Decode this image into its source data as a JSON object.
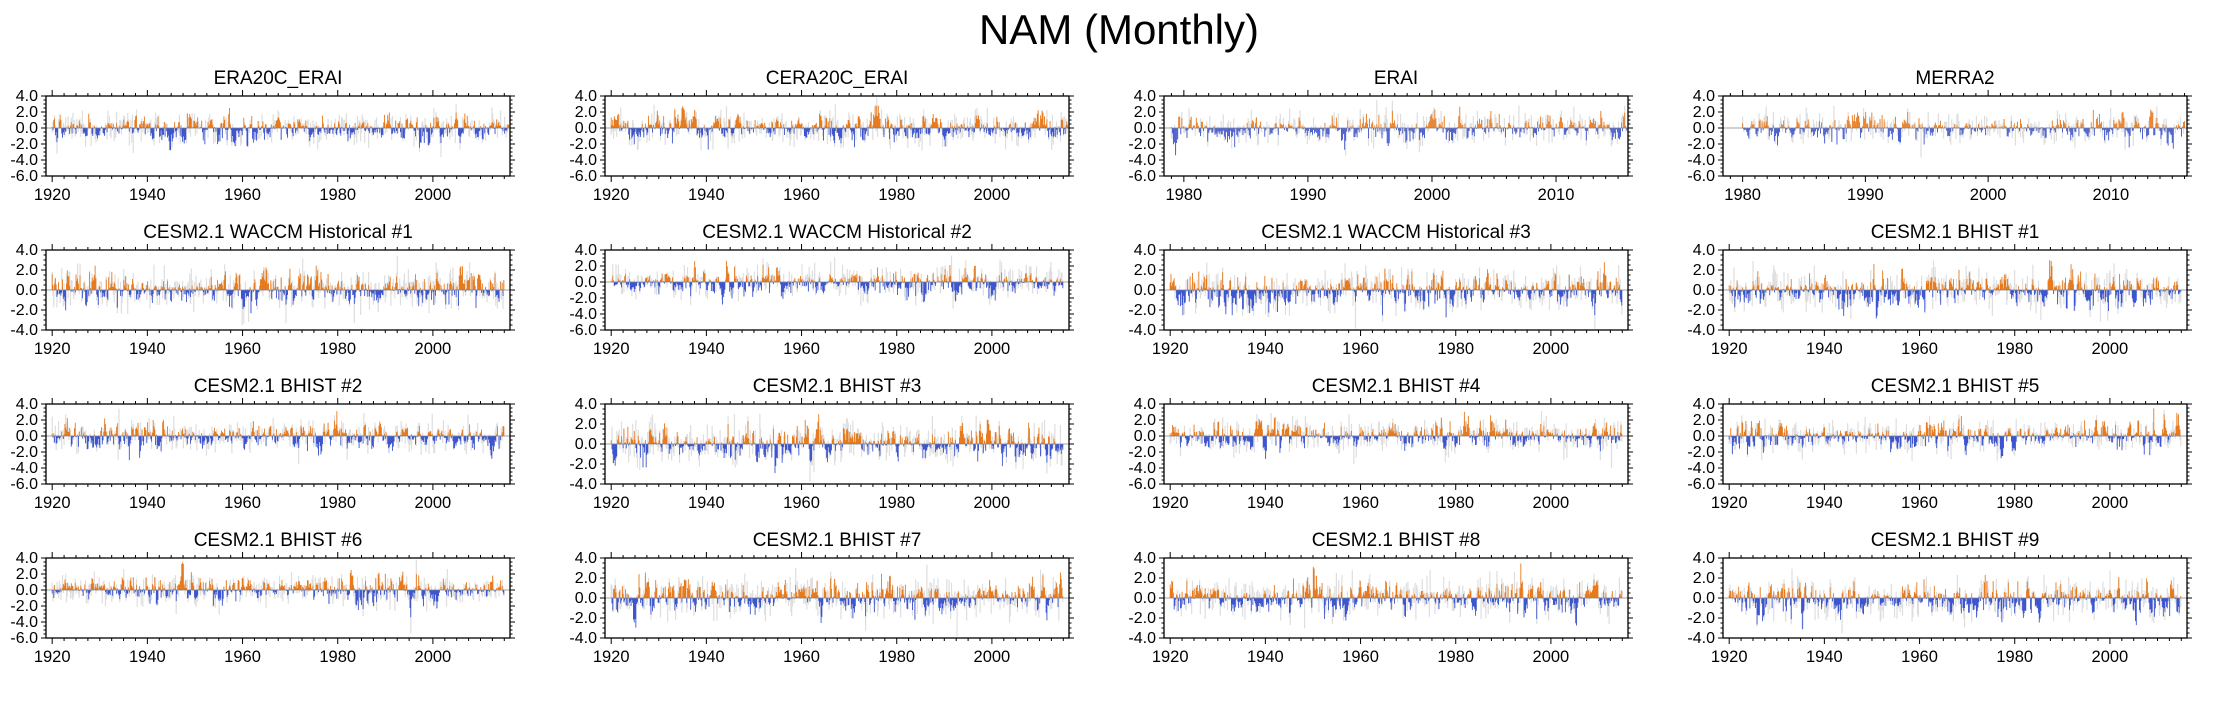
{
  "page_title": "NAM (Monthly)",
  "colors": {
    "positive_bar": "#E87A1E",
    "negative_bar": "#3D55CF",
    "background_bar": "#DEDEDE",
    "axis": "#000000",
    "zero_line": "#808080",
    "text": "#000000"
  },
  "chart_data": {
    "type": "bar",
    "title": "NAM (Monthly)",
    "description": "4x4 grid of monthly NAM (Northern Annular Mode) index anomaly time series. Each panel shows monthly bar anomalies: orange above zero, blue below zero, with a light-gray unfiltered monthly series drawn behind. Values are noise-like monthly anomalies mostly within +/-2, occasional peaks near +3.5 and dips near -5.",
    "legend_position": "none",
    "grid": false,
    "panels": [
      {
        "title": "ERA20C_ERAI",
        "seed": 101,
        "xlim": [
          1918.7,
          2016.2
        ],
        "xticks": [
          "1920",
          "1940",
          "1960",
          "1980",
          "2000"
        ],
        "x_minor_step": 2.5,
        "data_start": 1920,
        "data_end": 2015.9,
        "samples_per_year": 6,
        "ylim": [
          -6,
          4
        ],
        "yticks": [
          "4.0",
          "2.0",
          "0.0",
          "-2.0",
          "-4.0",
          "-6.0"
        ]
      },
      {
        "title": "CERA20C_ERAI",
        "seed": 202,
        "xlim": [
          1918.7,
          2016.2
        ],
        "xticks": [
          "1920",
          "1940",
          "1960",
          "1980",
          "2000"
        ],
        "x_minor_step": 2.5,
        "data_start": 1920,
        "data_end": 2015.9,
        "samples_per_year": 6,
        "ylim": [
          -6,
          4
        ],
        "yticks": [
          "4.0",
          "2.0",
          "0.0",
          "-2.0",
          "-4.0",
          "-6.0"
        ]
      },
      {
        "title": "ERAI",
        "seed": 303,
        "xlim": [
          1978.4,
          2015.8
        ],
        "xticks": [
          "1980",
          "1990",
          "2000",
          "2010"
        ],
        "x_minor_step": 1,
        "data_start": 1979,
        "data_end": 2015.7,
        "samples_per_year": 12,
        "ylim": [
          -6,
          4
        ],
        "yticks": [
          "4.0",
          "2.0",
          "0.0",
          "-2.0",
          "-4.0",
          "-6.0"
        ]
      },
      {
        "title": "MERRA2",
        "seed": 404,
        "xlim": [
          1978.4,
          2016.2
        ],
        "xticks": [
          "1980",
          "1990",
          "2000",
          "2010"
        ],
        "x_minor_step": 1,
        "data_start": 1980,
        "data_end": 2016,
        "samples_per_year": 12,
        "ylim": [
          -6,
          4
        ],
        "yticks": [
          "4.0",
          "2.0",
          "0.0",
          "-2.0",
          "-4.0",
          "-6.0"
        ]
      },
      {
        "title": "CESM2.1 WACCM Historical #1",
        "seed": 505,
        "xlim": [
          1918.7,
          2016.2
        ],
        "xticks": [
          "1920",
          "1940",
          "1960",
          "1980",
          "2000"
        ],
        "x_minor_step": 2.5,
        "data_start": 1920,
        "data_end": 2014.9,
        "samples_per_year": 6,
        "ylim": [
          -4,
          4
        ],
        "yticks": [
          "4.0",
          "2.0",
          "0.0",
          "-2.0",
          "-4.0"
        ]
      },
      {
        "title": "CESM2.1 WACCM Historical #2",
        "seed": 606,
        "xlim": [
          1918.7,
          2016.2
        ],
        "xticks": [
          "1920",
          "1940",
          "1960",
          "1980",
          "2000"
        ],
        "x_minor_step": 2.5,
        "data_start": 1920,
        "data_end": 2014.9,
        "samples_per_year": 6,
        "ylim": [
          -6,
          4
        ],
        "yticks": [
          "4.0",
          "2.0",
          "0.0",
          "-2.0",
          "-4.0",
          "-6.0"
        ]
      },
      {
        "title": "CESM2.1 WACCM Historical #3",
        "seed": 707,
        "xlim": [
          1918.7,
          2016.2
        ],
        "xticks": [
          "1920",
          "1940",
          "1960",
          "1980",
          "2000"
        ],
        "x_minor_step": 2.5,
        "data_start": 1920,
        "data_end": 2014.9,
        "samples_per_year": 6,
        "ylim": [
          -4,
          4
        ],
        "yticks": [
          "4.0",
          "2.0",
          "0.0",
          "-2.0",
          "-4.0"
        ]
      },
      {
        "title": "CESM2.1 BHIST #1",
        "seed": 808,
        "xlim": [
          1918.7,
          2016.2
        ],
        "xticks": [
          "1920",
          "1940",
          "1960",
          "1980",
          "2000"
        ],
        "x_minor_step": 2.5,
        "data_start": 1920,
        "data_end": 2014.9,
        "samples_per_year": 6,
        "ylim": [
          -4,
          4
        ],
        "yticks": [
          "4.0",
          "2.0",
          "0.0",
          "-2.0",
          "-4.0"
        ]
      },
      {
        "title": "CESM2.1 BHIST #2",
        "seed": 909,
        "xlim": [
          1918.7,
          2016.2
        ],
        "xticks": [
          "1920",
          "1940",
          "1960",
          "1980",
          "2000"
        ],
        "x_minor_step": 2.5,
        "data_start": 1920,
        "data_end": 2014.9,
        "samples_per_year": 6,
        "ylim": [
          -6,
          4
        ],
        "yticks": [
          "4.0",
          "2.0",
          "0.0",
          "-2.0",
          "-4.0",
          "-6.0"
        ]
      },
      {
        "title": "CESM2.1 BHIST #3",
        "seed": 1010,
        "xlim": [
          1918.7,
          2016.2
        ],
        "xticks": [
          "1920",
          "1940",
          "1960",
          "1980",
          "2000"
        ],
        "x_minor_step": 2.5,
        "data_start": 1920,
        "data_end": 2014.9,
        "samples_per_year": 6,
        "ylim": [
          -4,
          4
        ],
        "yticks": [
          "4.0",
          "2.0",
          "0.0",
          "-2.0",
          "-4.0"
        ]
      },
      {
        "title": "CESM2.1 BHIST #4",
        "seed": 1111,
        "xlim": [
          1918.7,
          2016.2
        ],
        "xticks": [
          "1920",
          "1940",
          "1960",
          "1980",
          "2000"
        ],
        "x_minor_step": 2.5,
        "data_start": 1920,
        "data_end": 2014.9,
        "samples_per_year": 6,
        "ylim": [
          -6,
          4
        ],
        "yticks": [
          "4.0",
          "2.0",
          "0.0",
          "-2.0",
          "-4.0",
          "-6.0"
        ]
      },
      {
        "title": "CESM2.1 BHIST #5",
        "seed": 1212,
        "xlim": [
          1918.7,
          2016.2
        ],
        "xticks": [
          "1920",
          "1940",
          "1960",
          "1980",
          "2000"
        ],
        "x_minor_step": 2.5,
        "data_start": 1920,
        "data_end": 2014.9,
        "samples_per_year": 6,
        "ylim": [
          -6,
          4
        ],
        "yticks": [
          "4.0",
          "2.0",
          "0.0",
          "-2.0",
          "-4.0",
          "-6.0"
        ]
      },
      {
        "title": "CESM2.1 BHIST #6",
        "seed": 1313,
        "xlim": [
          1918.7,
          2016.2
        ],
        "xticks": [
          "1920",
          "1940",
          "1960",
          "1980",
          "2000"
        ],
        "x_minor_step": 2.5,
        "data_start": 1920,
        "data_end": 2014.9,
        "samples_per_year": 6,
        "ylim": [
          -6,
          4
        ],
        "yticks": [
          "4.0",
          "2.0",
          "0.0",
          "-2.0",
          "-4.0",
          "-6.0"
        ]
      },
      {
        "title": "CESM2.1 BHIST #7",
        "seed": 1414,
        "xlim": [
          1918.7,
          2016.2
        ],
        "xticks": [
          "1920",
          "1940",
          "1960",
          "1980",
          "2000"
        ],
        "x_minor_step": 2.5,
        "data_start": 1920,
        "data_end": 2014.9,
        "samples_per_year": 6,
        "ylim": [
          -4,
          4
        ],
        "yticks": [
          "4.0",
          "2.0",
          "0.0",
          "-2.0",
          "-4.0"
        ]
      },
      {
        "title": "CESM2.1 BHIST #8",
        "seed": 1515,
        "xlim": [
          1918.7,
          2016.2
        ],
        "xticks": [
          "1920",
          "1940",
          "1960",
          "1980",
          "2000"
        ],
        "x_minor_step": 2.5,
        "data_start": 1920,
        "data_end": 2014.9,
        "samples_per_year": 6,
        "ylim": [
          -4,
          4
        ],
        "yticks": [
          "4.0",
          "2.0",
          "0.0",
          "-2.0",
          "-4.0"
        ]
      },
      {
        "title": "CESM2.1 BHIST #9",
        "seed": 1616,
        "xlim": [
          1918.7,
          2016.2
        ],
        "xticks": [
          "1920",
          "1940",
          "1960",
          "1980",
          "2000"
        ],
        "x_minor_step": 2.5,
        "data_start": 1920,
        "data_end": 2014.9,
        "samples_per_year": 6,
        "ylim": [
          -4,
          4
        ],
        "yticks": [
          "4.0",
          "2.0",
          "0.0",
          "-2.0",
          "-4.0"
        ]
      }
    ]
  }
}
